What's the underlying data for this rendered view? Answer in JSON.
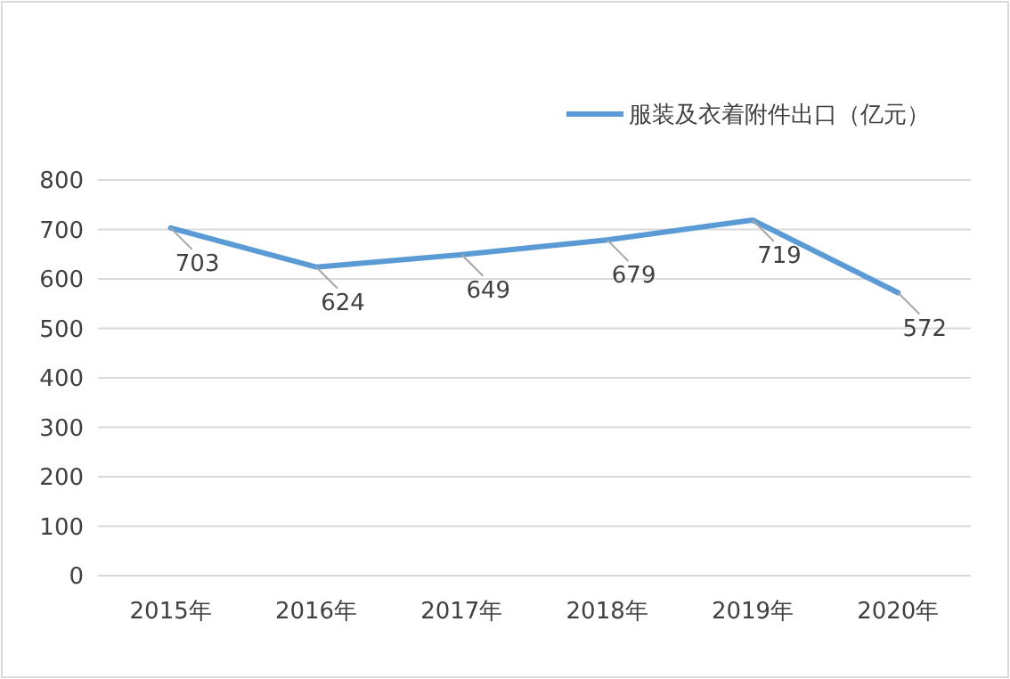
{
  "chart_data": {
    "type": "line",
    "categories": [
      "2015年",
      "2016年",
      "2017年",
      "2018年",
      "2019年",
      "2020年"
    ],
    "series": [
      {
        "name": "服装及衣着附件出口（亿元）",
        "color": "#5b9bd5",
        "values": [
          703,
          624,
          649,
          679,
          719,
          572
        ]
      }
    ],
    "ylim": [
      0,
      800
    ],
    "yticks": [
      0,
      100,
      200,
      300,
      400,
      500,
      600,
      700,
      800
    ],
    "grid": "y",
    "legend": "top right",
    "data_labels": true,
    "marker": "none",
    "line_style": "solid"
  }
}
